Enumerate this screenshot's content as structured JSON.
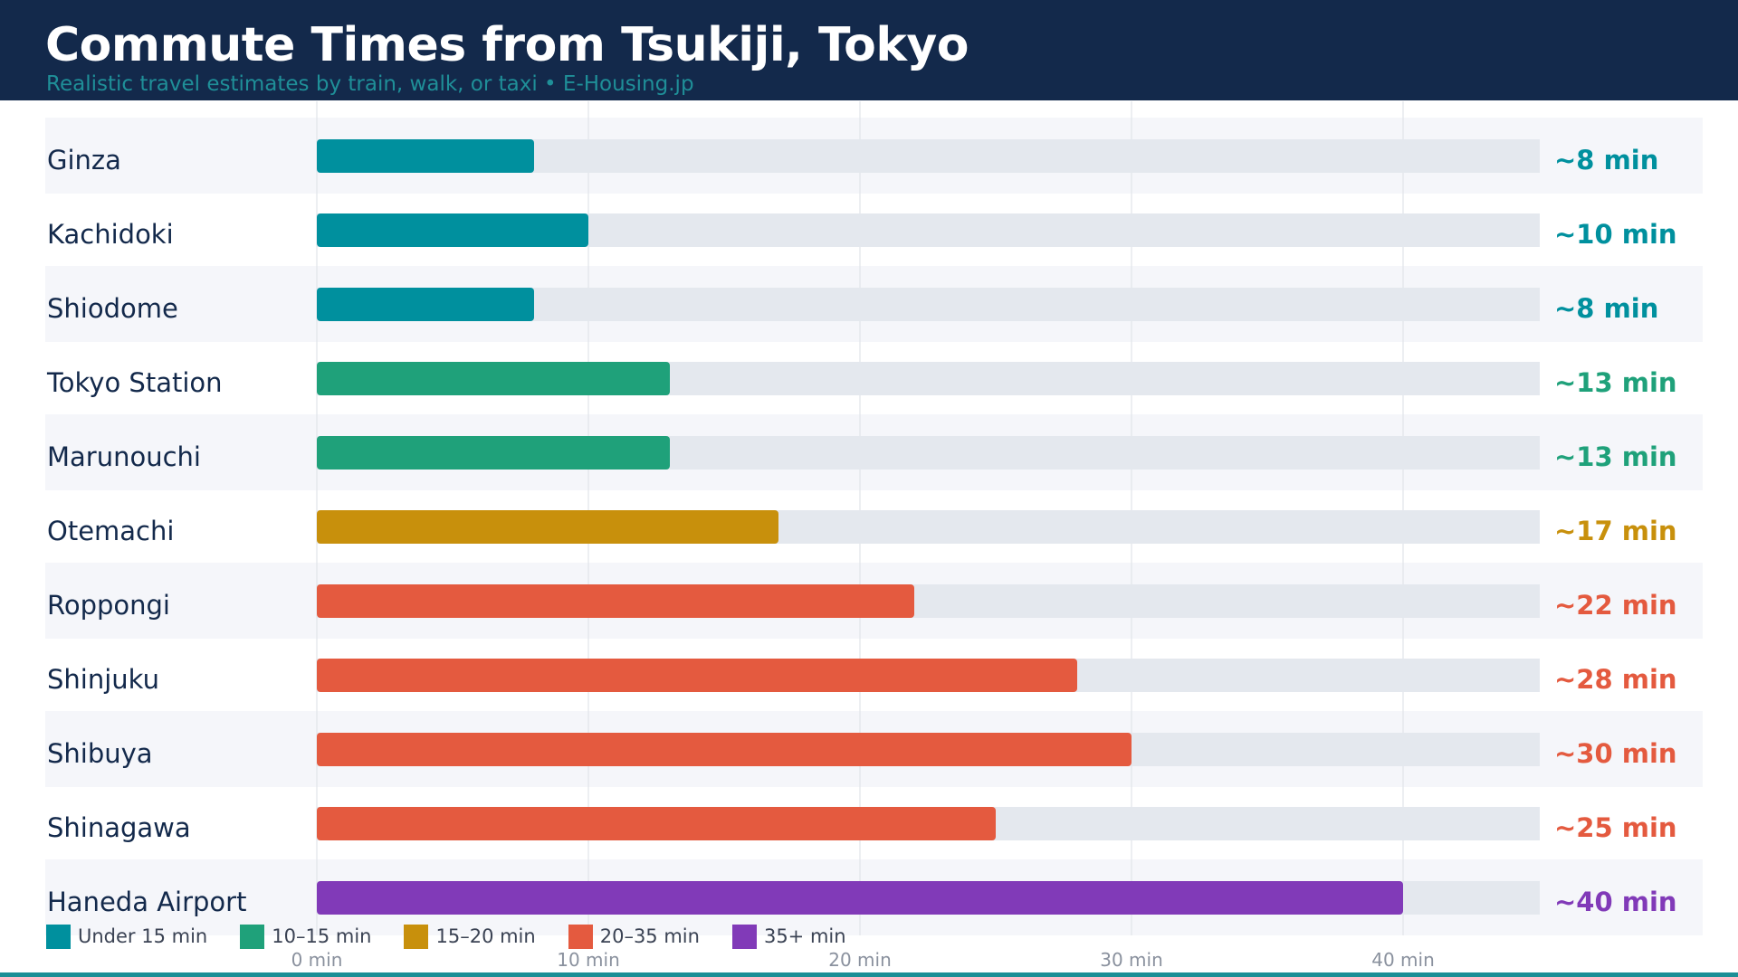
{
  "header": {
    "title": "Commute Times from Tsukiji, Tokyo",
    "subtitle": "Realistic travel estimates by train, walk, or taxi  •  E-Housing.jp"
  },
  "colors": {
    "header_bg": "#13294b",
    "band": "#f5f6fa",
    "track": "#e4e8ee",
    "grid": "#e1e4ea",
    "label": "#13294b",
    "tick": "#8a919e"
  },
  "legend": [
    {
      "label": "Under 15 min",
      "color": "#00909e"
    },
    {
      "label": "10–15 min",
      "color": "#1fa17a"
    },
    {
      "label": "15–20 min",
      "color": "#c8900c"
    },
    {
      "label": "20–35 min",
      "color": "#e45a3f"
    },
    {
      "label": "35+ min",
      "color": "#813ab8"
    }
  ],
  "chart_data": {
    "type": "bar",
    "orientation": "horizontal",
    "title": "Commute Times from Tsukiji, Tokyo",
    "subtitle": "Realistic travel estimates by train, walk, or taxi  •  E-Housing.jp",
    "categories": [
      "Ginza",
      "Kachidoki",
      "Shiodome",
      "Tokyo Station",
      "Marunouchi",
      "Otemachi",
      "Roppongi",
      "Shinjuku",
      "Shibuya",
      "Shinagawa",
      "Haneda Airport"
    ],
    "values": [
      8,
      10,
      8,
      13,
      13,
      17,
      22,
      28,
      30,
      25,
      40
    ],
    "value_labels": [
      "~8 min",
      "~10 min",
      "~8 min",
      "~13 min",
      "~13 min",
      "~17 min",
      "~22 min",
      "~28 min",
      "~30 min",
      "~25 min",
      "~40 min"
    ],
    "bar_colors": [
      "#00909e",
      "#00909e",
      "#00909e",
      "#1fa17a",
      "#1fa17a",
      "#c8900c",
      "#e45a3f",
      "#e45a3f",
      "#e45a3f",
      "#e45a3f",
      "#813ab8"
    ],
    "xlim": [
      0,
      45
    ],
    "xticks": [
      0,
      10,
      20,
      30,
      40
    ],
    "xtick_labels": [
      "0 min",
      "10 min",
      "20 min",
      "30 min",
      "40 min"
    ],
    "grid": true,
    "legend_position": "bottom-left"
  }
}
